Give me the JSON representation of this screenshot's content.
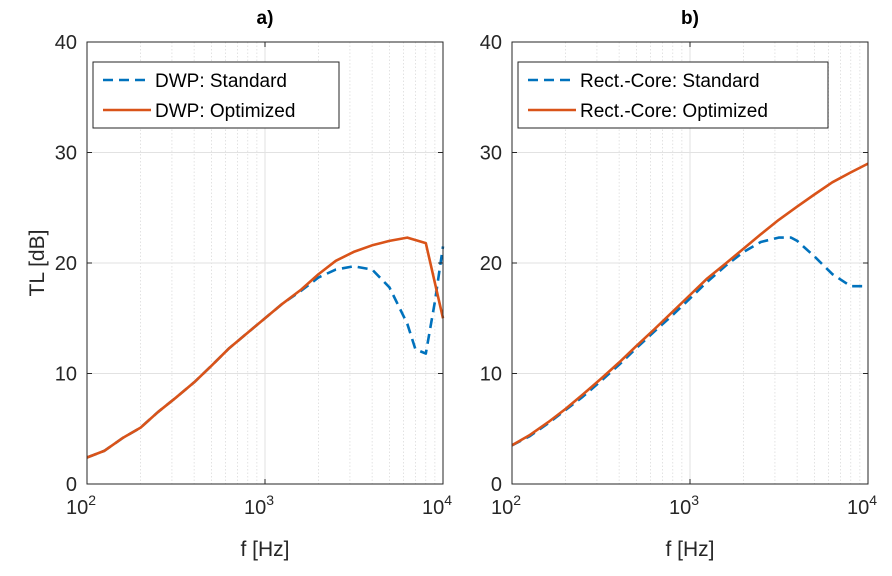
{
  "chart_data": [
    {
      "type": "line",
      "title": "a)",
      "xlabel": "f [Hz]",
      "ylabel": "TL [dB]",
      "x_scale": "log",
      "xlim": [
        100,
        10000
      ],
      "ylim": [
        0,
        40
      ],
      "x_ticks": [
        100,
        1000,
        10000
      ],
      "x_tick_labels": [
        {
          "base": "10",
          "exp": "2"
        },
        {
          "base": "10",
          "exp": "3"
        },
        {
          "base": "10",
          "exp": "4"
        }
      ],
      "y_ticks": [
        0,
        10,
        20,
        30,
        40
      ],
      "y_tick_labels": [
        "0",
        "10",
        "20",
        "30",
        "40"
      ],
      "grid": true,
      "legend_position": "top-left",
      "series": [
        {
          "name": "DWP: Standard",
          "color": "#0072BD",
          "dash": "dashed",
          "x": [
            100,
            125,
            160,
            200,
            250,
            315,
            400,
            500,
            630,
            800,
            1000,
            1250,
            1600,
            2000,
            2500,
            3150,
            4000,
            5000,
            6300,
            7000,
            8000,
            9000,
            10000
          ],
          "y": [
            2.4,
            3.0,
            4.2,
            5.1,
            6.5,
            7.8,
            9.2,
            10.7,
            12.3,
            13.7,
            15.0,
            16.3,
            17.5,
            18.7,
            19.4,
            19.7,
            19.4,
            17.8,
            14.5,
            12.2,
            11.8,
            16.5,
            21.5
          ]
        },
        {
          "name": "DWP: Optimized",
          "color": "#D95319",
          "dash": "solid",
          "x": [
            100,
            125,
            160,
            200,
            250,
            315,
            400,
            500,
            630,
            800,
            1000,
            1250,
            1600,
            2000,
            2500,
            3150,
            4000,
            5000,
            6300,
            8000,
            10000
          ],
          "y": [
            2.4,
            3.0,
            4.2,
            5.1,
            6.5,
            7.8,
            9.2,
            10.7,
            12.3,
            13.7,
            15.0,
            16.3,
            17.6,
            19.0,
            20.2,
            21.0,
            21.6,
            22.0,
            22.3,
            21.8,
            15.0
          ]
        }
      ]
    },
    {
      "type": "line",
      "title": "b)",
      "xlabel": "f [Hz]",
      "ylabel": "",
      "x_scale": "log",
      "xlim": [
        100,
        10000
      ],
      "ylim": [
        0,
        40
      ],
      "x_ticks": [
        100,
        1000,
        10000
      ],
      "x_tick_labels": [
        {
          "base": "10",
          "exp": "2"
        },
        {
          "base": "10",
          "exp": "3"
        },
        {
          "base": "10",
          "exp": "4"
        }
      ],
      "y_ticks": [
        0,
        10,
        20,
        30,
        40
      ],
      "y_tick_labels": [
        "0",
        "10",
        "20",
        "30",
        "40"
      ],
      "grid": true,
      "legend_position": "top-left",
      "series": [
        {
          "name": "Rect.-Core: Standard",
          "color": "#0072BD",
          "dash": "dashed",
          "x": [
            100,
            125,
            160,
            200,
            250,
            315,
            400,
            500,
            630,
            800,
            1000,
            1250,
            1600,
            2000,
            2500,
            3150,
            3700,
            4000,
            5000,
            6300,
            8000,
            10000
          ],
          "y": [
            3.5,
            4.3,
            5.5,
            6.7,
            7.9,
            9.3,
            10.8,
            12.3,
            13.8,
            15.3,
            16.8,
            18.3,
            19.8,
            21.0,
            21.9,
            22.3,
            22.3,
            22.0,
            20.6,
            19.0,
            17.9,
            17.9
          ]
        },
        {
          "name": "Rect.-Core: Optimized",
          "color": "#D95319",
          "dash": "solid",
          "x": [
            100,
            125,
            160,
            200,
            250,
            315,
            400,
            500,
            630,
            800,
            1000,
            1250,
            1600,
            2000,
            2500,
            3150,
            4000,
            5000,
            6300,
            8000,
            10000
          ],
          "y": [
            3.5,
            4.4,
            5.6,
            6.8,
            8.1,
            9.5,
            11.0,
            12.5,
            14.0,
            15.6,
            17.1,
            18.6,
            20.0,
            21.3,
            22.6,
            23.9,
            25.1,
            26.2,
            27.3,
            28.2,
            29.0
          ]
        }
      ]
    }
  ]
}
